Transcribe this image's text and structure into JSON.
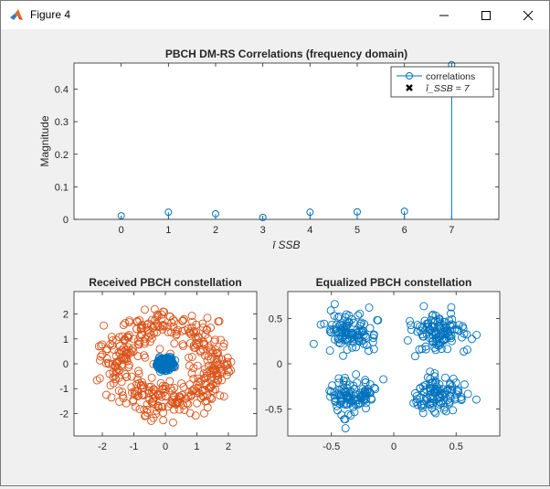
{
  "window": {
    "title": "Figure 4",
    "icons": {
      "app": "matlab-logo-icon",
      "minimize": "minimize-icon",
      "maximize": "maximize-icon",
      "close": "close-icon"
    }
  },
  "colors": {
    "blue": "#0072bd",
    "orange": "#d95319",
    "figure_bg": "#f0f0f0",
    "axes_bg": "#ffffff"
  },
  "chart_data": [
    {
      "id": "correlations",
      "type": "stem",
      "title": "PBCH DM-RS Correlations (frequency domain)",
      "xlabel": "ī_SSB",
      "ylabel": "Magnitude",
      "x": [
        0,
        1,
        2,
        3,
        4,
        5,
        6,
        7
      ],
      "y": [
        0.011,
        0.022,
        0.017,
        0.006,
        0.022,
        0.023,
        0.025,
        0.475
      ],
      "xlim": [
        -1,
        8
      ],
      "ylim": [
        0,
        0.48
      ],
      "xticks": [
        0,
        1,
        2,
        3,
        4,
        5,
        6,
        7
      ],
      "yticks": [
        0,
        0.1,
        0.2,
        0.3,
        0.4
      ],
      "ytick_labels": [
        "0",
        "0.1",
        "0.2",
        "0.3",
        "0.4"
      ],
      "detected": {
        "x": 7,
        "y": 0.475
      },
      "legend": {
        "position": "top-right",
        "entries": [
          {
            "label": "correlations",
            "marker": "circle-line"
          },
          {
            "label": "î_SSB = 7",
            "marker": "cross"
          }
        ]
      }
    },
    {
      "id": "received",
      "type": "scatter",
      "title": "Received PBCH constellation",
      "xlim": [
        -2.9,
        2.9
      ],
      "ylim": [
        -2.9,
        2.9
      ],
      "xticks": [
        -2,
        -1,
        0,
        1,
        2
      ],
      "yticks": [
        -2,
        -1,
        0,
        1,
        2
      ],
      "series": [
        {
          "color": "orange",
          "shape": "ring",
          "points": 432,
          "ring_radius": 1.55,
          "ring_spread": 0.55
        },
        {
          "color": "blue",
          "shape": "qpsk-cluster",
          "points": 432,
          "center_amplitude": 0.05
        }
      ]
    },
    {
      "id": "equalized",
      "type": "scatter",
      "title": "Equalized PBCH constellation",
      "xlim": [
        -0.85,
        0.85
      ],
      "ylim": [
        -0.8,
        0.8
      ],
      "xticks": [
        -0.5,
        0,
        0.5
      ],
      "xtick_labels": [
        "-0.5",
        "0",
        "0.5"
      ],
      "yticks": [
        -0.5,
        0,
        0.5
      ],
      "ytick_labels": [
        "-0.5",
        "0",
        "0.5"
      ],
      "series": [
        {
          "color": "blue",
          "shape": "qpsk-clusters",
          "points": 432,
          "centers": [
            [
              -0.35,
              0.35
            ],
            [
              0.35,
              0.35
            ],
            [
              -0.35,
              -0.35
            ],
            [
              0.35,
              -0.35
            ]
          ],
          "spread": 0.11
        }
      ]
    }
  ]
}
